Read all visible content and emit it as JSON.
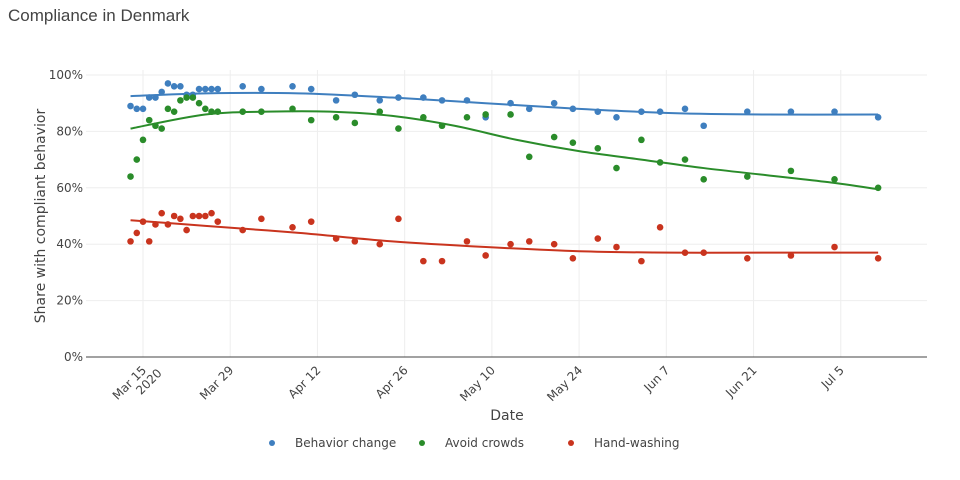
{
  "chart_data": {
    "type": "scatter",
    "title": "Compliance in Denmark",
    "xlabel": "Date",
    "ylabel": "Share with compliant behavior",
    "x_unit": "days since 2020-03-15",
    "xlim": [
      -4,
      126
    ],
    "ylim": [
      0,
      100
    ],
    "grid": true,
    "legend_position": "bottom",
    "y_ticks": [
      {
        "value": 0,
        "label": "0%"
      },
      {
        "value": 20,
        "label": "20%"
      },
      {
        "value": 40,
        "label": "40%"
      },
      {
        "value": 60,
        "label": "60%"
      },
      {
        "value": 80,
        "label": "80%"
      },
      {
        "value": 100,
        "label": "100%"
      }
    ],
    "x_ticks": [
      {
        "value": 0,
        "label": "Mar 15",
        "sublabel": "2020"
      },
      {
        "value": 14,
        "label": "Mar 29"
      },
      {
        "value": 28,
        "label": "Apr 12"
      },
      {
        "value": 42,
        "label": "Apr 26"
      },
      {
        "value": 56,
        "label": "May 10"
      },
      {
        "value": 70,
        "label": "May 24"
      },
      {
        "value": 84,
        "label": "Jun 7"
      },
      {
        "value": 98,
        "label": "Jun 21"
      },
      {
        "value": 112,
        "label": "Jul 5"
      }
    ],
    "series": [
      {
        "name": "Behavior change",
        "color": "#3f7fbf",
        "points": [
          [
            -2,
            89
          ],
          [
            -1,
            88
          ],
          [
            0,
            88
          ],
          [
            1,
            92
          ],
          [
            2,
            92
          ],
          [
            3,
            94
          ],
          [
            4,
            97
          ],
          [
            5,
            96
          ],
          [
            6,
            96
          ],
          [
            7,
            93
          ],
          [
            8,
            93
          ],
          [
            9,
            95
          ],
          [
            10,
            95
          ],
          [
            11,
            95
          ],
          [
            12,
            95
          ],
          [
            16,
            96
          ],
          [
            19,
            95
          ],
          [
            24,
            96
          ],
          [
            27,
            95
          ],
          [
            31,
            91
          ],
          [
            34,
            93
          ],
          [
            38,
            91
          ],
          [
            41,
            92
          ],
          [
            45,
            92
          ],
          [
            48,
            91
          ],
          [
            52,
            91
          ],
          [
            55,
            85
          ],
          [
            59,
            90
          ],
          [
            62,
            88
          ],
          [
            66,
            90
          ],
          [
            69,
            88
          ],
          [
            73,
            87
          ],
          [
            76,
            85
          ],
          [
            80,
            87
          ],
          [
            83,
            87
          ],
          [
            87,
            88
          ],
          [
            90,
            82
          ],
          [
            97,
            87
          ],
          [
            104,
            87
          ],
          [
            111,
            87
          ],
          [
            118,
            85
          ]
        ],
        "trend": [
          [
            -2,
            92.5
          ],
          [
            10,
            93.5
          ],
          [
            25,
            93.5
          ],
          [
            40,
            92
          ],
          [
            55,
            90
          ],
          [
            70,
            88
          ],
          [
            85,
            86.5
          ],
          [
            100,
            86
          ],
          [
            118,
            86
          ]
        ]
      },
      {
        "name": "Avoid crowds",
        "color": "#2a8c2a",
        "points": [
          [
            -2,
            64
          ],
          [
            -1,
            70
          ],
          [
            0,
            77
          ],
          [
            1,
            84
          ],
          [
            2,
            82
          ],
          [
            3,
            81
          ],
          [
            4,
            88
          ],
          [
            5,
            87
          ],
          [
            6,
            91
          ],
          [
            7,
            92
          ],
          [
            8,
            92
          ],
          [
            9,
            90
          ],
          [
            10,
            88
          ],
          [
            11,
            87
          ],
          [
            12,
            87
          ],
          [
            16,
            87
          ],
          [
            19,
            87
          ],
          [
            24,
            88
          ],
          [
            27,
            84
          ],
          [
            31,
            85
          ],
          [
            34,
            83
          ],
          [
            38,
            87
          ],
          [
            41,
            81
          ],
          [
            45,
            85
          ],
          [
            48,
            82
          ],
          [
            52,
            85
          ],
          [
            55,
            86
          ],
          [
            59,
            86
          ],
          [
            62,
            71
          ],
          [
            66,
            78
          ],
          [
            69,
            76
          ],
          [
            73,
            74
          ],
          [
            76,
            67
          ],
          [
            80,
            77
          ],
          [
            83,
            69
          ],
          [
            87,
            70
          ],
          [
            90,
            63
          ],
          [
            97,
            64
          ],
          [
            104,
            66
          ],
          [
            111,
            63
          ],
          [
            118,
            60
          ]
        ],
        "trend": [
          [
            -2,
            81
          ],
          [
            10,
            86
          ],
          [
            20,
            87
          ],
          [
            30,
            87
          ],
          [
            40,
            85.5
          ],
          [
            50,
            82
          ],
          [
            60,
            77
          ],
          [
            70,
            73
          ],
          [
            80,
            70
          ],
          [
            90,
            67
          ],
          [
            100,
            64.5
          ],
          [
            110,
            62
          ],
          [
            118,
            59.5
          ]
        ]
      },
      {
        "name": "Hand-washing",
        "color": "#c9341e",
        "points": [
          [
            -2,
            41
          ],
          [
            -1,
            44
          ],
          [
            0,
            48
          ],
          [
            1,
            41
          ],
          [
            2,
            47
          ],
          [
            3,
            51
          ],
          [
            4,
            47
          ],
          [
            5,
            50
          ],
          [
            6,
            49
          ],
          [
            7,
            45
          ],
          [
            8,
            50
          ],
          [
            9,
            50
          ],
          [
            10,
            50
          ],
          [
            11,
            51
          ],
          [
            12,
            48
          ],
          [
            16,
            45
          ],
          [
            19,
            49
          ],
          [
            24,
            46
          ],
          [
            27,
            48
          ],
          [
            31,
            42
          ],
          [
            34,
            41
          ],
          [
            38,
            40
          ],
          [
            41,
            49
          ],
          [
            45,
            34
          ],
          [
            48,
            34
          ],
          [
            52,
            41
          ],
          [
            55,
            36
          ],
          [
            59,
            40
          ],
          [
            62,
            41
          ],
          [
            66,
            40
          ],
          [
            69,
            35
          ],
          [
            73,
            42
          ],
          [
            76,
            39
          ],
          [
            80,
            34
          ],
          [
            83,
            46
          ],
          [
            87,
            37
          ],
          [
            90,
            37
          ],
          [
            97,
            35
          ],
          [
            104,
            36
          ],
          [
            111,
            39
          ],
          [
            118,
            35
          ]
        ],
        "trend": [
          [
            -2,
            48.5
          ],
          [
            10,
            46.5
          ],
          [
            25,
            44
          ],
          [
            40,
            41
          ],
          [
            55,
            39
          ],
          [
            70,
            37.5
          ],
          [
            85,
            37
          ],
          [
            100,
            37
          ],
          [
            118,
            37
          ]
        ]
      }
    ]
  }
}
